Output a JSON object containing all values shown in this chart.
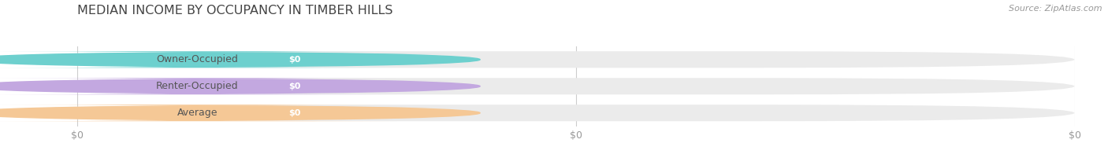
{
  "title": "MEDIAN INCOME BY OCCUPANCY IN TIMBER HILLS",
  "source": "Source: ZipAtlas.com",
  "categories": [
    "Owner-Occupied",
    "Renter-Occupied",
    "Average"
  ],
  "values": [
    0,
    0,
    0
  ],
  "bar_colors": [
    "#6dd0ce",
    "#c3a8e0",
    "#f5c896"
  ],
  "bar_bg_color": "#ebebeb",
  "white_label_bg": "#ffffff",
  "label_color": "#555555",
  "title_color": "#444444",
  "value_labels": [
    "$0",
    "$0",
    "$0"
  ],
  "x_tick_labels": [
    "$0",
    "$0",
    "$0"
  ],
  "background_color": "#ffffff",
  "fig_width": 14.06,
  "fig_height": 1.96,
  "dpi": 100
}
